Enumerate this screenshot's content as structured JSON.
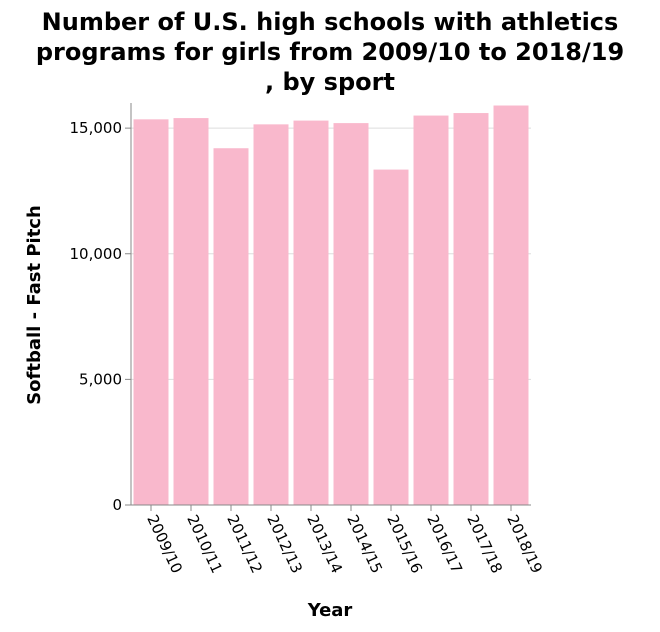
{
  "chart_data": {
    "type": "bar",
    "title_lines": [
      "Number of U.S. high schools with athletics",
      "programs for girls from 2009/10 to 2018/19",
      ", by sport"
    ],
    "xlabel": "Year",
    "ylabel": "Softball - Fast Pitch",
    "categories": [
      "2009/10",
      "2010/11",
      "2011/12",
      "2012/13",
      "2013/14",
      "2014/15",
      "2015/16",
      "2016/17",
      "2017/18",
      "2018/19"
    ],
    "values": [
      15350,
      15400,
      14200,
      15150,
      15300,
      15200,
      13350,
      15500,
      15600,
      15900
    ],
    "ylim": [
      0,
      16000
    ],
    "yticks": [
      0,
      5000,
      10000,
      15000
    ],
    "ytick_labels": [
      "0",
      "5,000",
      "10,000",
      "15,000"
    ],
    "bar_color": "#f9b8cc",
    "grid": true,
    "legend": "none"
  }
}
